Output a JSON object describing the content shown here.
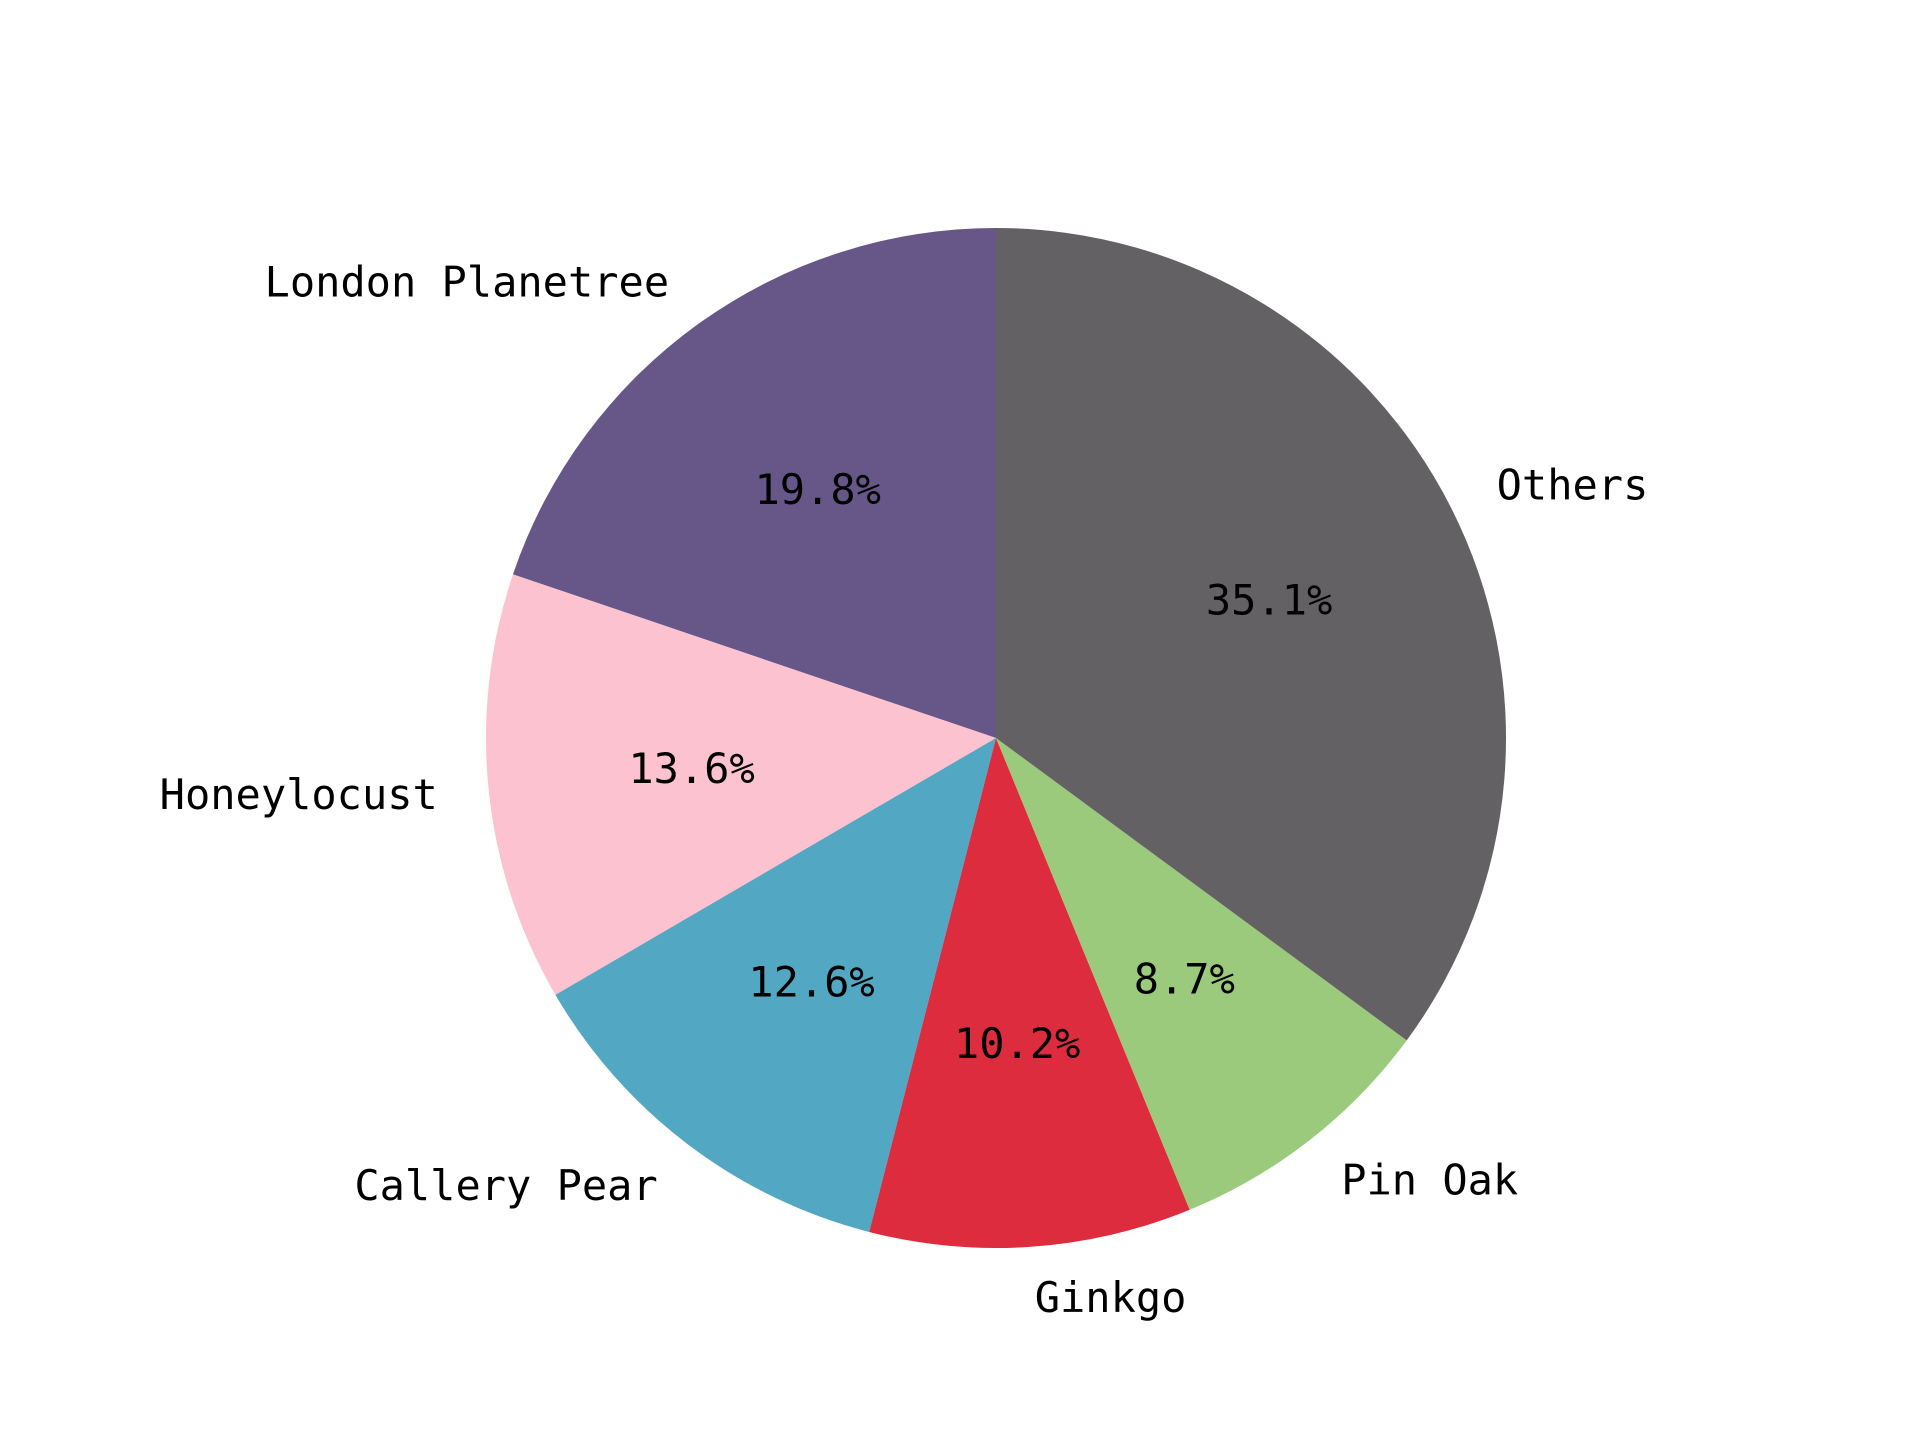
{
  "chart_data": {
    "type": "pie",
    "title": "",
    "start_angle_deg": 90,
    "direction": "counterclockwise",
    "slices": [
      {
        "label": "London Planetree",
        "value": 19.8,
        "pct_label": "19.8%",
        "color": "#675788"
      },
      {
        "label": "Honeylocust",
        "value": 13.6,
        "pct_label": "13.6%",
        "color": "#fcc2d0"
      },
      {
        "label": "Callery Pear",
        "value": 12.6,
        "pct_label": "12.6%",
        "color": "#52a7c3"
      },
      {
        "label": "Ginkgo",
        "value": 10.2,
        "pct_label": "10.2%",
        "color": "#dd2c3e"
      },
      {
        "label": "Pin Oak",
        "value": 8.7,
        "pct_label": "8.7%",
        "color": "#9bca7d"
      },
      {
        "label": "Others",
        "value": 35.1,
        "pct_label": "35.1%",
        "color": "#636164"
      }
    ]
  }
}
